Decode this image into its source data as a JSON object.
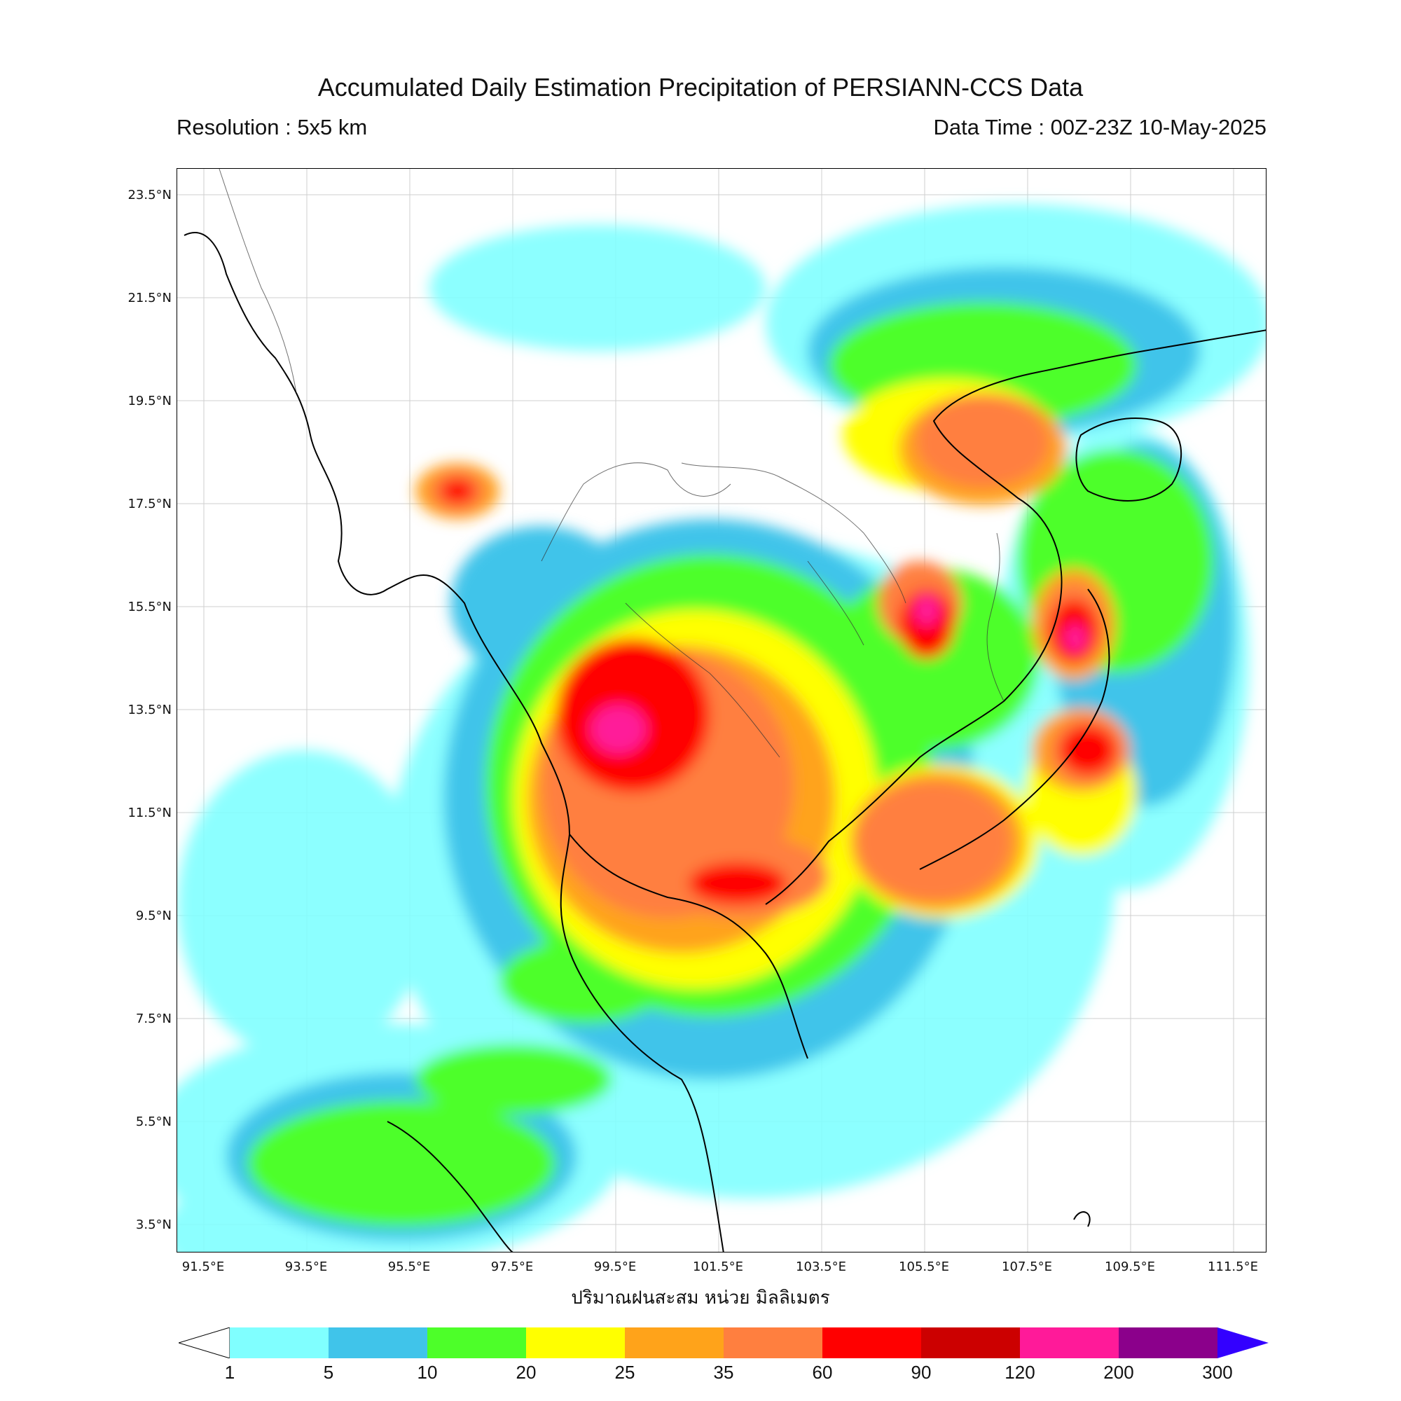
{
  "header": {
    "title": "Accumulated Daily Estimation Precipitation of PERSIANN-CCS Data",
    "resolution": "Resolution : 5x5 km",
    "data_time": "Data Time : 00Z-23Z 10-May-2025"
  },
  "axes": {
    "lat_labels": [
      "23.5°N",
      "21.5°N",
      "19.5°N",
      "17.5°N",
      "15.5°N",
      "13.5°N",
      "11.5°N",
      "9.5°N",
      "7.5°N",
      "5.5°N",
      "3.5°N"
    ],
    "lon_labels": [
      "91.5°E",
      "93.5°E",
      "95.5°E",
      "97.5°E",
      "99.5°E",
      "101.5°E",
      "103.5°E",
      "105.5°E",
      "107.5°E",
      "109.5°E",
      "111.5°E"
    ]
  },
  "unit_label": "ปริมาณฝนสะสม หน่วย มิลลิเมตร",
  "colorbar": {
    "ticks": [
      "1",
      "5",
      "10",
      "20",
      "25",
      "35",
      "60",
      "90",
      "120",
      "200",
      "300"
    ],
    "colors": [
      "#80ffff",
      "#40c4ea",
      "#4dff29",
      "#ffff00",
      "#ffa31a",
      "#ff7f3f",
      "#ff0000",
      "#cc0000",
      "#ff1a99",
      "#8b008b",
      "#3300ff"
    ]
  }
}
